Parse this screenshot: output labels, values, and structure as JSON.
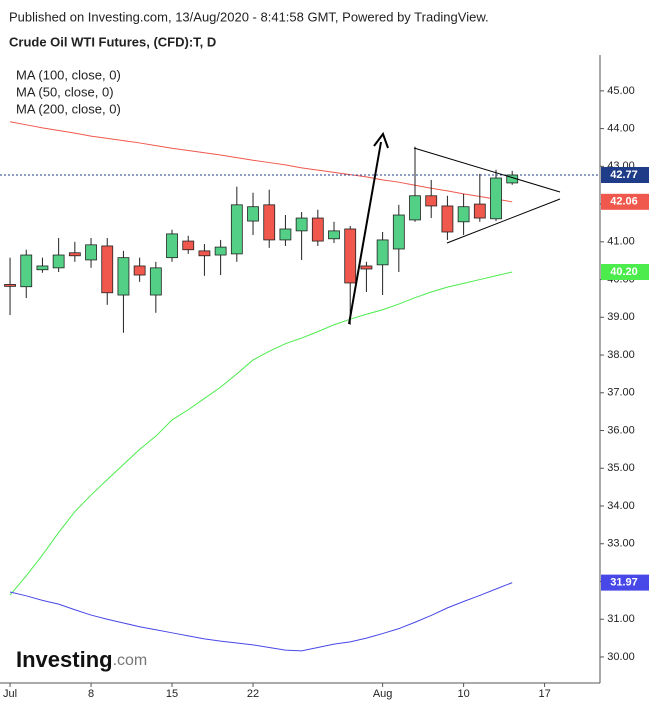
{
  "chart_data": {
    "type": "candlestick",
    "header": "Published on Investing.com, 13/Aug/2020 - 8:41:58 GMT, Powered by TradingView.",
    "title": "Crude Oil WTI Futures, (CFD):T, D",
    "logo": {
      "brand": "Investing",
      "suffix": ".com"
    },
    "x": [
      0,
      1,
      2,
      3,
      4,
      5,
      6,
      7,
      8,
      9,
      10,
      11,
      12,
      13,
      14,
      15,
      16,
      17,
      18,
      19,
      20,
      21,
      22,
      23,
      24,
      25,
      26,
      27,
      28,
      29,
      30,
      31
    ],
    "xlim": [
      -0.62,
      36.42
    ],
    "xticks": [
      {
        "value": 0,
        "label": "Jul"
      },
      {
        "value": 5,
        "label": "8"
      },
      {
        "value": 10,
        "label": "15"
      },
      {
        "value": 15,
        "label": "22"
      },
      {
        "value": 23,
        "label": "Aug"
      },
      {
        "value": 28,
        "label": "10"
      },
      {
        "value": 33,
        "label": "17"
      }
    ],
    "ylim": [
      29.31,
      45.95
    ],
    "yticks": [
      {
        "value": 30,
        "label": "30.00"
      },
      {
        "value": 31,
        "label": "31.00"
      },
      {
        "value": 32,
        "label": "32.00"
      },
      {
        "value": 33,
        "label": "33.00"
      },
      {
        "value": 34,
        "label": "34.00"
      },
      {
        "value": 35,
        "label": "35.00"
      },
      {
        "value": 36,
        "label": "36.00"
      },
      {
        "value": 37,
        "label": "37.00"
      },
      {
        "value": 38,
        "label": "38.00"
      },
      {
        "value": 39,
        "label": "39.00"
      },
      {
        "value": 40,
        "label": "40.00"
      },
      {
        "value": 41,
        "label": "41.00"
      },
      {
        "value": 42,
        "label": "42.00"
      },
      {
        "value": 43,
        "label": "43.00"
      },
      {
        "value": 44,
        "label": "44.00"
      },
      {
        "value": 45,
        "label": "45.00"
      }
    ],
    "up_color": "#53d086",
    "down_color": "#f0584d",
    "last_color": "#1f3c88",
    "open": [
      39.87,
      39.81,
      40.26,
      40.31,
      40.71,
      40.52,
      40.89,
      39.59,
      40.36,
      39.59,
      40.58,
      41.02,
      40.76,
      40.65,
      40.68,
      41.55,
      41.98,
      41.05,
      41.29,
      41.63,
      41.08,
      41.34,
      40.36,
      40.39,
      40.81,
      41.58,
      42.22,
      41.95,
      41.53,
      42.0,
      41.61,
      42.56
    ],
    "high": [
      40.58,
      40.79,
      40.58,
      41.1,
      41.0,
      41.1,
      41.1,
      40.76,
      40.58,
      40.47,
      41.32,
      41.16,
      40.94,
      41.05,
      42.46,
      42.3,
      42.38,
      41.71,
      41.79,
      41.85,
      41.53,
      41.42,
      40.47,
      41.26,
      41.98,
      43.52,
      42.64,
      42.22,
      42.27,
      42.8,
      42.91,
      42.88
    ],
    "low": [
      39.06,
      39.51,
      40.18,
      40.2,
      40.47,
      40.31,
      39.33,
      38.59,
      39.94,
      39.12,
      40.47,
      40.68,
      40.1,
      40.12,
      40.47,
      41.18,
      40.84,
      40.89,
      40.52,
      40.89,
      40.97,
      38.8,
      39.67,
      39.59,
      40.2,
      41.53,
      41.63,
      41.05,
      41.18,
      41.53,
      41.55,
      42.51
    ],
    "close": [
      39.82,
      40.65,
      40.36,
      40.65,
      40.63,
      40.92,
      39.65,
      40.58,
      40.12,
      40.31,
      41.21,
      40.79,
      40.63,
      40.86,
      41.98,
      41.93,
      41.05,
      41.34,
      41.63,
      41.02,
      41.29,
      39.91,
      40.28,
      41.05,
      41.71,
      42.22,
      41.95,
      41.26,
      41.93,
      41.63,
      42.69,
      42.77
    ],
    "series": [
      {
        "name": "MA (100, close, 0)",
        "color": "#f0584d",
        "values": [
          44.18,
          44.1,
          44.02,
          43.95,
          43.88,
          43.8,
          43.74,
          43.68,
          43.62,
          43.55,
          43.48,
          43.42,
          43.36,
          43.3,
          43.23,
          43.16,
          43.1,
          43.04,
          42.96,
          42.9,
          42.84,
          42.78,
          42.72,
          42.64,
          42.58,
          42.5,
          42.42,
          42.35,
          42.27,
          42.2,
          42.13,
          42.06
        ]
      },
      {
        "name": "MA (50, close, 0)",
        "color": "#4cec4c",
        "values": [
          31.64,
          32.15,
          32.7,
          33.3,
          33.85,
          34.29,
          34.7,
          35.1,
          35.5,
          35.85,
          36.28,
          36.55,
          36.85,
          37.15,
          37.5,
          37.87,
          38.1,
          38.3,
          38.45,
          38.62,
          38.8,
          38.95,
          39.08,
          39.2,
          39.35,
          39.52,
          39.67,
          39.8,
          39.9,
          40.0,
          40.1,
          40.2
        ],
        "value_labels": [
          null,
          null,
          null,
          null,
          null,
          null,
          null,
          null,
          null,
          null,
          null,
          null,
          null,
          null,
          null,
          null,
          null,
          null,
          null,
          null,
          null,
          null,
          null,
          null,
          null,
          null,
          null,
          null,
          null,
          null,
          null,
          "40.20"
        ]
      },
      {
        "name": "MA (200, close, 0)",
        "color": "#4848e8",
        "values": [
          31.72,
          31.62,
          31.5,
          31.4,
          31.25,
          31.11,
          31.0,
          30.9,
          30.8,
          30.72,
          30.64,
          30.56,
          30.48,
          30.42,
          30.37,
          30.32,
          30.25,
          30.18,
          30.16,
          30.25,
          30.34,
          30.4,
          30.5,
          30.62,
          30.75,
          30.92,
          31.1,
          31.3,
          31.47,
          31.63,
          31.8,
          31.97
        ]
      }
    ]
  }
}
